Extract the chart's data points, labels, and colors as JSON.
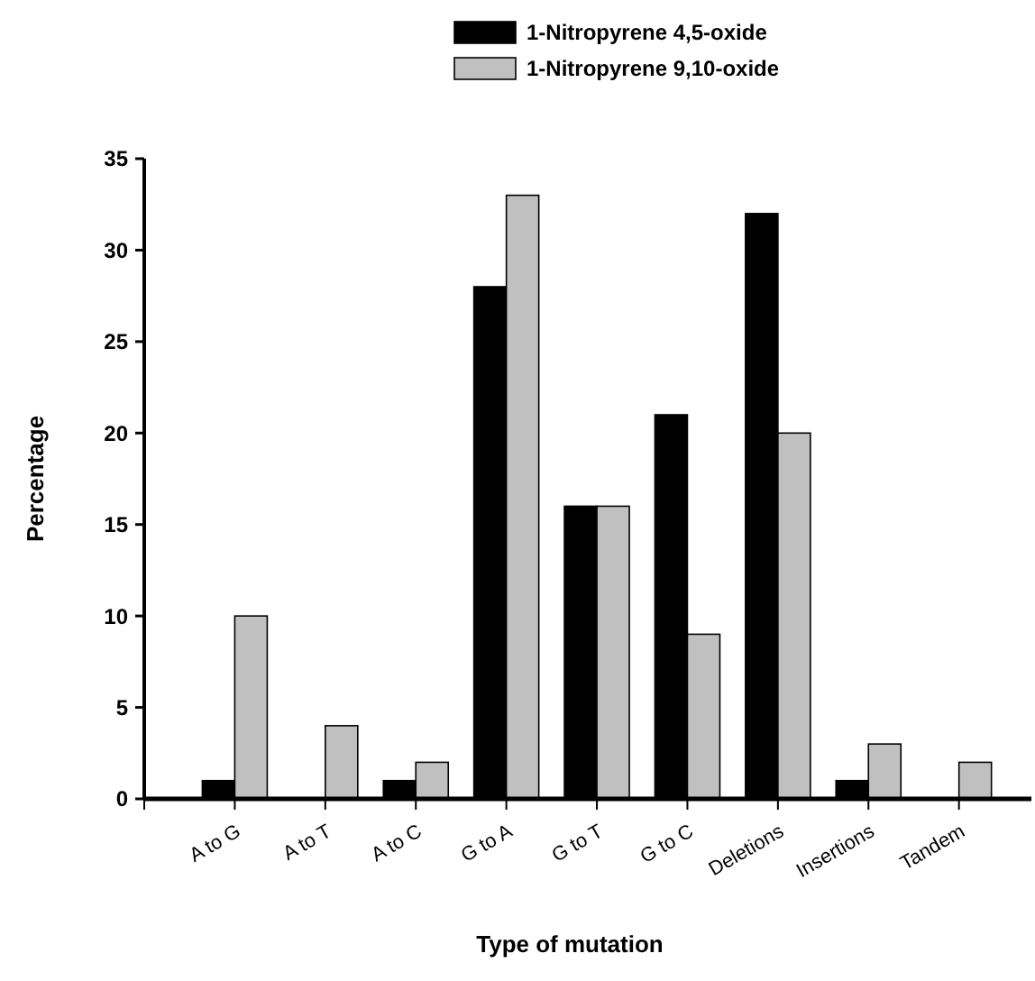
{
  "chart_data": {
    "type": "bar",
    "xlabel": "Type of mutation",
    "ylabel": "Percentage",
    "categories": [
      "A to G",
      "A to T",
      "A to C",
      "G to A",
      "G to T",
      "G to C",
      "Deletions",
      "Insertions",
      "Tandem"
    ],
    "series": [
      {
        "name": "1-Nitropyrene 4,5-oxide",
        "color": "#000000",
        "values": [
          1,
          0,
          1,
          28,
          16,
          21,
          32,
          1,
          0
        ]
      },
      {
        "name": "1-Nitropyrene 9,10-oxide",
        "color": "#c0c0c0",
        "values": [
          10,
          4,
          2,
          33,
          16,
          9,
          20,
          3,
          2
        ]
      }
    ],
    "ylim": [
      0,
      35
    ],
    "yticks": [
      0,
      5,
      10,
      15,
      20,
      25,
      30,
      35
    ],
    "legend": "top",
    "grid": false
  }
}
